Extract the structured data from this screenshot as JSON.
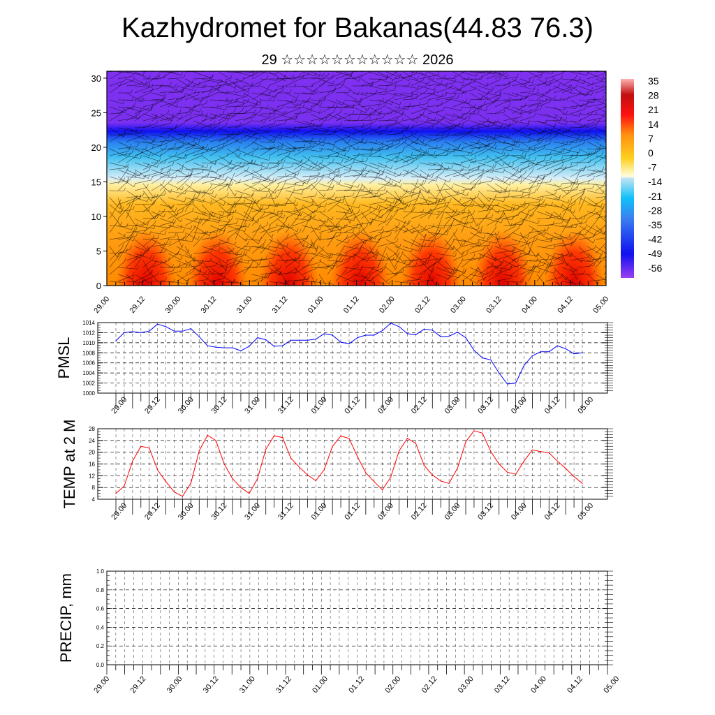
{
  "header": {
    "title": "Kazhydromet for Bakanas(44.83 76.3)",
    "subtitle": "29 ☆☆☆☆☆☆☆☆☆☆☆ 2026"
  },
  "colors": {
    "pmsl": "#0000ff",
    "temp": "#ff0000"
  },
  "chart_data": [
    {
      "type": "heatmap",
      "name": "vertical cross-section (temperature shading + wind barbs)",
      "x_tick_labels": [
        "29.00",
        "29.12",
        "30.00",
        "30.12",
        "31.00",
        "31.12",
        "01.00",
        "01.12",
        "02.00",
        "02.12",
        "03.00",
        "03.12",
        "04.00",
        "04.12",
        "05.00"
      ],
      "y_ticks": [
        0,
        5,
        10,
        15,
        20,
        25,
        30
      ],
      "ylim": [
        0,
        31
      ],
      "colorbar": {
        "labels": [
          "35",
          "28",
          "21",
          "14",
          "7",
          "0",
          "-7",
          "-14",
          "-21",
          "-28",
          "-35",
          "-42",
          "-49",
          "-56"
        ],
        "range": [
          -63,
          42
        ]
      }
    },
    {
      "type": "line",
      "ylabel": "PMSL",
      "y_ticks": [
        1000,
        1002,
        1004,
        1006,
        1008,
        1010,
        1012,
        1014
      ],
      "ylim": [
        1000,
        1014
      ],
      "x_tick_labels": [
        "29.00",
        "29.12",
        "30.00",
        "30.12",
        "31.00",
        "31.12",
        "01.00",
        "01.12",
        "02.00",
        "02.12",
        "03.00",
        "03.12",
        "04.00",
        "04.12",
        "05.00"
      ],
      "x_step_hours": 3,
      "values": [
        1010.4,
        1012.0,
        1012.2,
        1012.0,
        1012.3,
        1013.7,
        1013.2,
        1012.3,
        1012.3,
        1012.8,
        1011.2,
        1009.4,
        1009.1,
        1009.0,
        1009.0,
        1008.4,
        1009.3,
        1011.0,
        1010.6,
        1009.3,
        1009.4,
        1010.5,
        1010.5,
        1010.5,
        1010.7,
        1011.8,
        1011.5,
        1010.1,
        1009.8,
        1011.0,
        1011.5,
        1011.5,
        1012.4,
        1013.9,
        1013.2,
        1011.8,
        1011.6,
        1012.7,
        1012.5,
        1011.2,
        1011.3,
        1012.1,
        1011.0,
        1008.5,
        1007.0,
        1006.6,
        1004.0,
        1001.8,
        1002.0,
        1005.5,
        1007.4,
        1008.2,
        1008.2,
        1009.4,
        1008.8,
        1007.8,
        1008.0
      ]
    },
    {
      "type": "line",
      "ylabel": "TEMP at 2 M",
      "y_ticks": [
        4,
        8,
        12,
        16,
        20,
        24,
        28
      ],
      "ylim": [
        4,
        28
      ],
      "x_tick_labels": [
        "29.00",
        "29.12",
        "30.00",
        "30.12",
        "31.00",
        "31.12",
        "01.00",
        "01.12",
        "02.00",
        "02.12",
        "03.00",
        "03.12",
        "04.00",
        "04.12",
        "05.00"
      ],
      "x_step_hours": 3,
      "values": [
        6.0,
        8.5,
        17,
        22,
        21.5,
        14,
        10,
        6.5,
        5,
        9.5,
        20.5,
        25.8,
        24,
        16,
        11,
        8,
        6,
        11,
        21,
        25.6,
        25,
        18,
        15,
        12.3,
        10.3,
        14,
        22,
        25.5,
        24.7,
        18.5,
        13,
        10,
        7.2,
        11.5,
        20.5,
        24.7,
        23,
        15.5,
        12.3,
        10.2,
        9.4,
        14.5,
        23.5,
        27.3,
        26.5,
        20.3,
        16,
        13.2,
        12.5,
        17,
        20.8,
        20.2,
        19.8,
        17,
        14.5,
        11.7,
        9.4
      ]
    },
    {
      "type": "bar",
      "ylabel": "PRECIP, mm",
      "y_ticks": [
        "0.0",
        "0.2",
        "0.4",
        "0.6",
        "0.8",
        "1.0"
      ],
      "ylim": [
        0,
        1
      ],
      "x_tick_labels": [
        "29.00",
        "29.12",
        "30.00",
        "30.12",
        "31.00",
        "31.12",
        "01.00",
        "01.12",
        "02.00",
        "02.12",
        "03.00",
        "03.12",
        "04.00",
        "04.12",
        "05.00"
      ],
      "values": []
    }
  ]
}
